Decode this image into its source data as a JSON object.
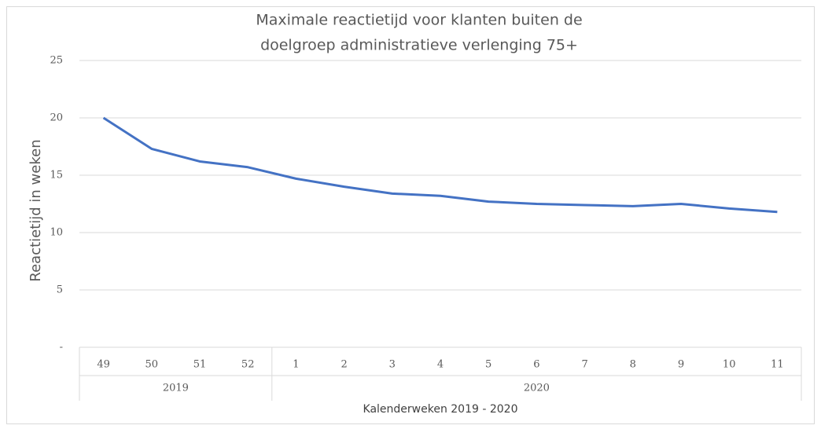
{
  "chart_data": {
    "type": "line",
    "title": [
      "Maximale reactietijd voor klanten buiten de",
      "doelgroep administratieve verlenging 75+"
    ],
    "y_label": "Reactietijd in weken",
    "x_label": "Kalenderweken 2019 - 2020",
    "groups": [
      {
        "label": "2019",
        "categories": [
          "49",
          "50",
          "51",
          "52"
        ]
      },
      {
        "label": "2020",
        "categories": [
          "1",
          "2",
          "3",
          "4",
          "5",
          "6",
          "7",
          "8",
          "9",
          "10",
          "11"
        ]
      }
    ],
    "series": [
      {
        "name": "Reactietijd",
        "color": "#4472c4",
        "values": [
          20.0,
          17.3,
          16.2,
          15.7,
          14.7,
          14.0,
          13.4,
          13.2,
          12.7,
          12.5,
          12.4,
          12.3,
          12.5,
          12.1,
          11.8
        ]
      }
    ],
    "ylim": [
      0,
      25
    ],
    "yticks": [
      {
        "value": 0,
        "label": "-"
      },
      5,
      10,
      15,
      20,
      25
    ],
    "grid": true
  }
}
